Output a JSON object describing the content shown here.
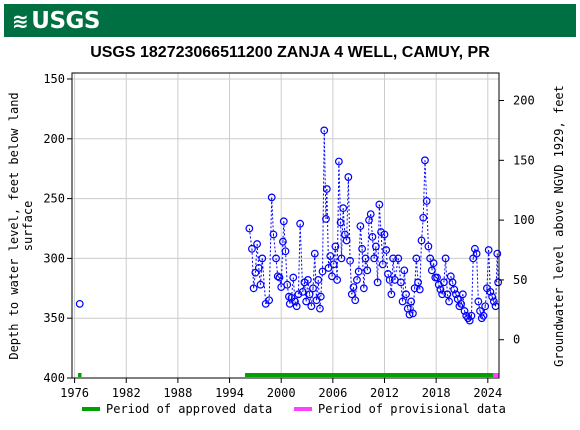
{
  "logo_text": "USGS",
  "chart_data": {
    "type": "scatter",
    "title": "USGS 182723066511200 ZANJA 4 WELL, CAMUY, PR",
    "ylabel_left": [
      "Depth to water level, feet below land",
      "surface"
    ],
    "ylabel_right": "Groundwater level above NGVD 1929, feet",
    "x_ticks": [
      "1976",
      "1982",
      "1988",
      "1994",
      "2000",
      "2006",
      "2012",
      "2018",
      "2024"
    ],
    "x_tick_values": [
      1976,
      1982,
      1988,
      1994,
      2000,
      2006,
      2012,
      2018,
      2024
    ],
    "y_left_ticks": [
      150,
      200,
      250,
      300,
      350,
      400
    ],
    "y_right_ticks": [
      0,
      50,
      100,
      150,
      200
    ],
    "xlim": [
      1975.7,
      2025.3
    ],
    "ylim_left": [
      145,
      400
    ],
    "right_axis_offset": 368,
    "y_inverted": true,
    "grid": true,
    "marker_color": "#0000ff",
    "series": [
      {
        "values": [
          [
            1976.6,
            338
          ],
          [
            1996.3,
            275
          ],
          [
            1996.6,
            292
          ],
          [
            1996.8,
            325
          ],
          [
            1997.0,
            312
          ],
          [
            1997.2,
            288
          ],
          [
            1997.4,
            308
          ],
          [
            1997.6,
            322
          ],
          [
            1997.8,
            300
          ],
          [
            1998.2,
            338
          ],
          [
            1998.6,
            335
          ],
          [
            1998.9,
            249
          ],
          [
            1999.1,
            280
          ],
          [
            1999.4,
            300
          ],
          [
            1999.6,
            315
          ],
          [
            1999.8,
            316
          ],
          [
            2000.0,
            324
          ],
          [
            2000.2,
            286
          ],
          [
            2000.3,
            269
          ],
          [
            2000.5,
            294
          ],
          [
            2000.7,
            322
          ],
          [
            2000.9,
            332
          ],
          [
            2001.0,
            338
          ],
          [
            2001.2,
            333
          ],
          [
            2001.4,
            316
          ],
          [
            2001.6,
            336
          ],
          [
            2001.8,
            340
          ],
          [
            2002.0,
            330
          ],
          [
            2002.2,
            271
          ],
          [
            2002.5,
            328
          ],
          [
            2002.7,
            320
          ],
          [
            2002.9,
            336
          ],
          [
            2003.1,
            318
          ],
          [
            2003.3,
            330
          ],
          [
            2003.5,
            340
          ],
          [
            2003.7,
            325
          ],
          [
            2003.9,
            296
          ],
          [
            2004.1,
            335
          ],
          [
            2004.3,
            318
          ],
          [
            2004.5,
            342
          ],
          [
            2004.6,
            332
          ],
          [
            2004.8,
            311
          ],
          [
            2005.0,
            193
          ],
          [
            2005.2,
            267
          ],
          [
            2005.3,
            242
          ],
          [
            2005.5,
            308
          ],
          [
            2005.7,
            298
          ],
          [
            2005.9,
            315
          ],
          [
            2006.1,
            305
          ],
          [
            2006.3,
            290
          ],
          [
            2006.5,
            318
          ],
          [
            2006.7,
            219
          ],
          [
            2006.9,
            270
          ],
          [
            2007.0,
            300
          ],
          [
            2007.2,
            258
          ],
          [
            2007.4,
            280
          ],
          [
            2007.6,
            285
          ],
          [
            2007.8,
            232
          ],
          [
            2008.0,
            302
          ],
          [
            2008.2,
            330
          ],
          [
            2008.4,
            324
          ],
          [
            2008.6,
            335
          ],
          [
            2008.8,
            318
          ],
          [
            2009.0,
            311
          ],
          [
            2009.2,
            273
          ],
          [
            2009.4,
            292
          ],
          [
            2009.6,
            325
          ],
          [
            2009.8,
            300
          ],
          [
            2010.0,
            310
          ],
          [
            2010.2,
            268
          ],
          [
            2010.4,
            263
          ],
          [
            2010.6,
            282
          ],
          [
            2010.8,
            300
          ],
          [
            2011.0,
            290
          ],
          [
            2011.2,
            320
          ],
          [
            2011.4,
            255
          ],
          [
            2011.6,
            278
          ],
          [
            2011.8,
            305
          ],
          [
            2012.0,
            280
          ],
          [
            2012.2,
            293
          ],
          [
            2012.4,
            313
          ],
          [
            2012.6,
            318
          ],
          [
            2012.8,
            330
          ],
          [
            2013.0,
            300
          ],
          [
            2013.2,
            318
          ],
          [
            2013.6,
            300
          ],
          [
            2013.9,
            320
          ],
          [
            2014.1,
            336
          ],
          [
            2014.3,
            310
          ],
          [
            2014.5,
            330
          ],
          [
            2014.7,
            342
          ],
          [
            2014.9,
            347
          ],
          [
            2015.1,
            336
          ],
          [
            2015.3,
            346
          ],
          [
            2015.5,
            325
          ],
          [
            2015.7,
            300
          ],
          [
            2015.9,
            320
          ],
          [
            2016.1,
            326
          ],
          [
            2016.3,
            285
          ],
          [
            2016.5,
            266
          ],
          [
            2016.7,
            218
          ],
          [
            2016.9,
            252
          ],
          [
            2017.1,
            290
          ],
          [
            2017.3,
            300
          ],
          [
            2017.5,
            310
          ],
          [
            2017.7,
            304
          ],
          [
            2017.9,
            316
          ],
          [
            2018.1,
            316
          ],
          [
            2018.3,
            322
          ],
          [
            2018.5,
            326
          ],
          [
            2018.7,
            330
          ],
          [
            2018.9,
            320
          ],
          [
            2019.1,
            300
          ],
          [
            2019.3,
            330
          ],
          [
            2019.5,
            336
          ],
          [
            2019.7,
            315
          ],
          [
            2019.9,
            320
          ],
          [
            2020.1,
            326
          ],
          [
            2020.3,
            330
          ],
          [
            2020.5,
            334
          ],
          [
            2020.7,
            340
          ],
          [
            2020.9,
            338
          ],
          [
            2021.1,
            330
          ],
          [
            2021.3,
            344
          ],
          [
            2021.5,
            348
          ],
          [
            2021.7,
            350
          ],
          [
            2021.9,
            352
          ],
          [
            2022.1,
            348
          ],
          [
            2022.3,
            300
          ],
          [
            2022.5,
            292
          ],
          [
            2022.7,
            296
          ],
          [
            2022.9,
            336
          ],
          [
            2023.1,
            344
          ],
          [
            2023.3,
            350
          ],
          [
            2023.5,
            348
          ],
          [
            2023.7,
            340
          ],
          [
            2023.9,
            325
          ],
          [
            2024.1,
            293
          ],
          [
            2024.3,
            328
          ],
          [
            2024.5,
            332
          ],
          [
            2024.7,
            336
          ],
          [
            2024.9,
            340
          ],
          [
            2025.1,
            296
          ],
          [
            2025.2,
            320
          ]
        ]
      }
    ],
    "periods": [
      {
        "label": "Period of approved data",
        "color": "#00a000",
        "ranges": [
          [
            1976.4,
            1976.8
          ],
          [
            1995.8,
            2024.6
          ]
        ]
      },
      {
        "label": "Period of provisional data",
        "color": "#ff40ff",
        "ranges": [
          [
            2024.6,
            2025.3
          ]
        ]
      }
    ],
    "legend_placement": "bottom"
  }
}
